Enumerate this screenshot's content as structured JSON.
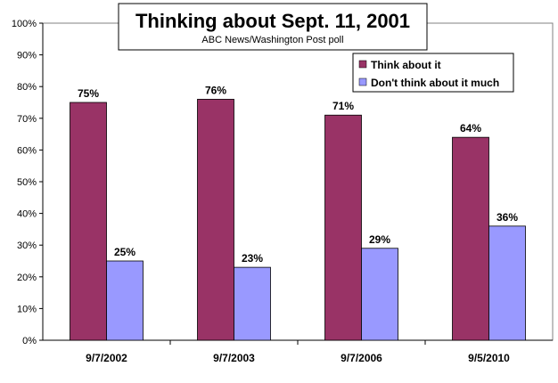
{
  "chart_data": {
    "type": "bar",
    "title": "Thinking about Sept. 11, 2001",
    "subtitle": "ABC News/Washington Post poll",
    "categories": [
      "9/7/2002",
      "9/7/2003",
      "9/7/2006",
      "9/5/2010"
    ],
    "series": [
      {
        "name": "Think about it",
        "values": [
          75,
          76,
          71,
          64
        ],
        "labels": [
          "75%",
          "76%",
          "71%",
          "64%"
        ],
        "color": "#993366"
      },
      {
        "name": "Don't think about it much",
        "values": [
          25,
          23,
          29,
          36
        ],
        "labels": [
          "25%",
          "23%",
          "29%",
          "36%"
        ],
        "color": "#9999ff"
      }
    ],
    "ylim": [
      0,
      100
    ],
    "yticks": [
      0,
      10,
      20,
      30,
      40,
      50,
      60,
      70,
      80,
      90,
      100
    ],
    "ytick_labels": [
      "0%",
      "10%",
      "20%",
      "30%",
      "40%",
      "50%",
      "60%",
      "70%",
      "80%",
      "90%",
      "100%"
    ],
    "xlabel": "",
    "ylabel": "",
    "grid": false,
    "legend_position": "top-right"
  }
}
